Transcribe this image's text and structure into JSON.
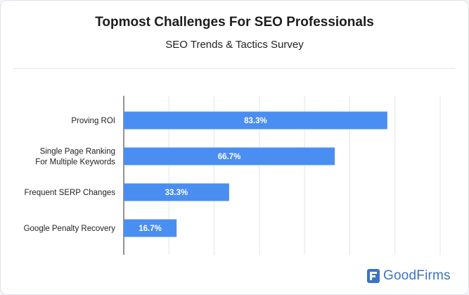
{
  "header": {
    "title": "Topmost Challenges For SEO Professionals",
    "subtitle": "SEO Trends & Tactics Survey"
  },
  "brand": {
    "name": "GoodFirms",
    "icon": "goodfirms-logo-icon",
    "color": "#3b73c6"
  },
  "colors": {
    "bar": "#4a8ef1",
    "value_text": "#ffffff"
  },
  "chart_data": {
    "type": "bar",
    "orientation": "horizontal",
    "title": "Topmost Challenges For SEO Professionals",
    "subtitle": "SEO Trends & Tactics Survey",
    "categories": [
      [
        "Proving ROI"
      ],
      [
        "Single Page Ranking",
        "For Multiple Keywords"
      ],
      [
        "Frequent SERP Changes"
      ],
      [
        "Google Penalty Recovery"
      ]
    ],
    "values": [
      83.3,
      66.7,
      33.3,
      16.7
    ],
    "value_labels": [
      "83.3%",
      "66.7%",
      "33.3%",
      "16.7%"
    ],
    "xlim": [
      0,
      100
    ],
    "grid": true,
    "legend": "none"
  }
}
